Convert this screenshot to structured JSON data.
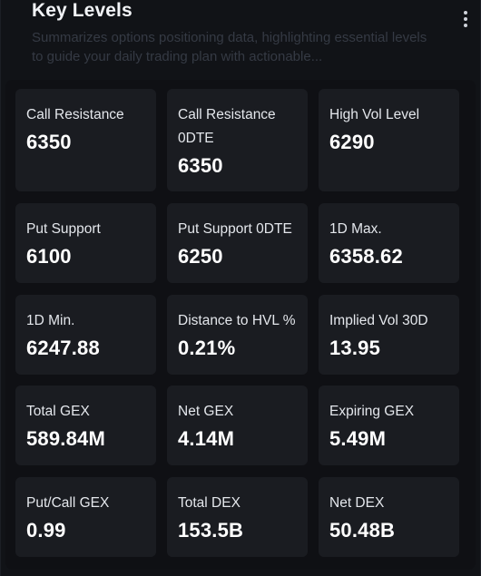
{
  "header": {
    "title": "Key Levels",
    "subtitle": "Summarizes options positioning data, highlighting essential levels to guide your daily trading plan with actionable..."
  },
  "menu": {
    "icon": "more-vertical-icon"
  },
  "levels": [
    {
      "label": "Call Resistance",
      "value": "6350"
    },
    {
      "label": "Call Resistance 0DTE",
      "value": "6350"
    },
    {
      "label": "High Vol Level",
      "value": "6290"
    },
    {
      "label": "Put Support",
      "value": "6100"
    },
    {
      "label": "Put Support 0DTE",
      "value": "6250"
    },
    {
      "label": "1D Max.",
      "value": "6358.62"
    },
    {
      "label": "1D Min.",
      "value": "6247.88"
    },
    {
      "label": "Distance to HVL %",
      "value": "0.21%"
    },
    {
      "label": "Implied Vol 30D",
      "value": "13.95"
    },
    {
      "label": "Total GEX",
      "value": "589.84M"
    },
    {
      "label": "Net GEX",
      "value": "4.14M"
    },
    {
      "label": "Expiring GEX",
      "value": "5.49M"
    },
    {
      "label": "Put/Call GEX",
      "value": "0.99"
    },
    {
      "label": "Total DEX",
      "value": "153.5B"
    },
    {
      "label": "Net DEX",
      "value": "50.48B"
    }
  ]
}
